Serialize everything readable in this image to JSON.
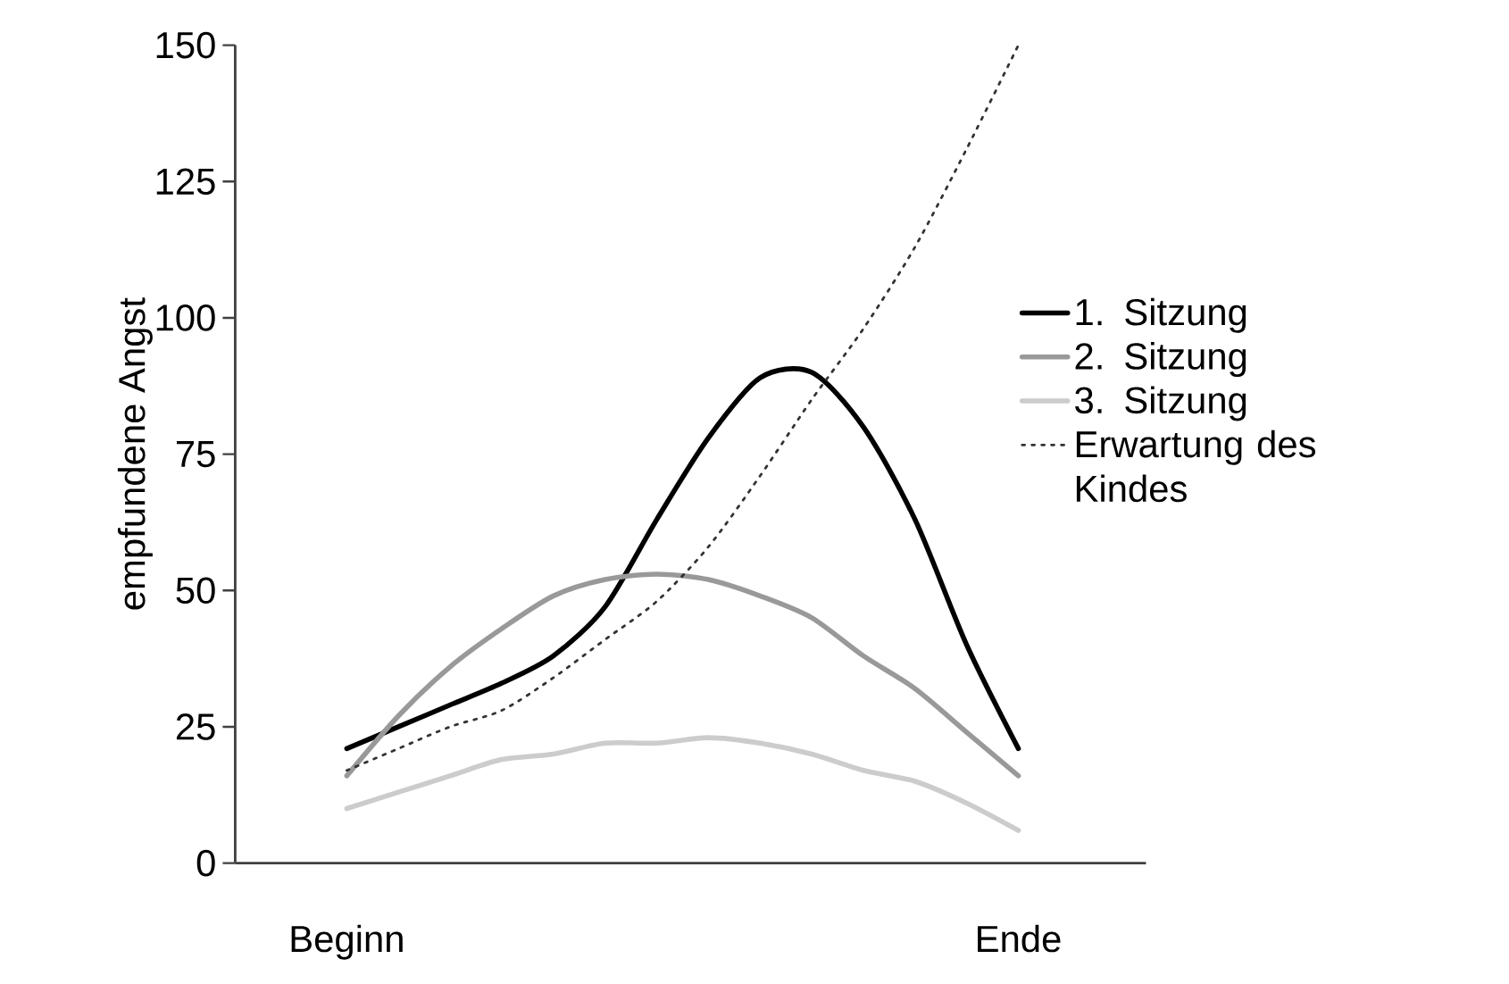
{
  "chart_data": {
    "type": "line",
    "ylabel": "empfundene Angst",
    "ylim": [
      0,
      150
    ],
    "categories": [
      "Beginn",
      null,
      null,
      null,
      null,
      null,
      null,
      null,
      null,
      null,
      null,
      null,
      null,
      "Ende"
    ],
    "yticks": [
      0,
      25,
      50,
      75,
      100,
      125,
      150
    ],
    "legend": "right",
    "marker": "none",
    "series": [
      {
        "name": "1. Sitzung",
        "color": "#000000",
        "line_style": "solid",
        "values": [
          21,
          25,
          29,
          33,
          38,
          47,
          63,
          78,
          89,
          90,
          80,
          63,
          40,
          21
        ]
      },
      {
        "name": "2. Sitzung",
        "color": "#999999",
        "line_style": "solid",
        "values": [
          16,
          27,
          36,
          43,
          49,
          52,
          53,
          52,
          49,
          45,
          38,
          32,
          24,
          16
        ]
      },
      {
        "name": "3. Sitzung",
        "color": "#cccccc",
        "line_style": "solid",
        "values": [
          10,
          13,
          16,
          19,
          20,
          22,
          22,
          23,
          22,
          20,
          17,
          15,
          11,
          6
        ]
      },
      {
        "name": "Erwartung des Kindes",
        "color": "#333333",
        "line_style": "dotted",
        "values": [
          17,
          21,
          25,
          28,
          34,
          41,
          48,
          58,
          71,
          85,
          98,
          113,
          131,
          150
        ]
      }
    ]
  }
}
